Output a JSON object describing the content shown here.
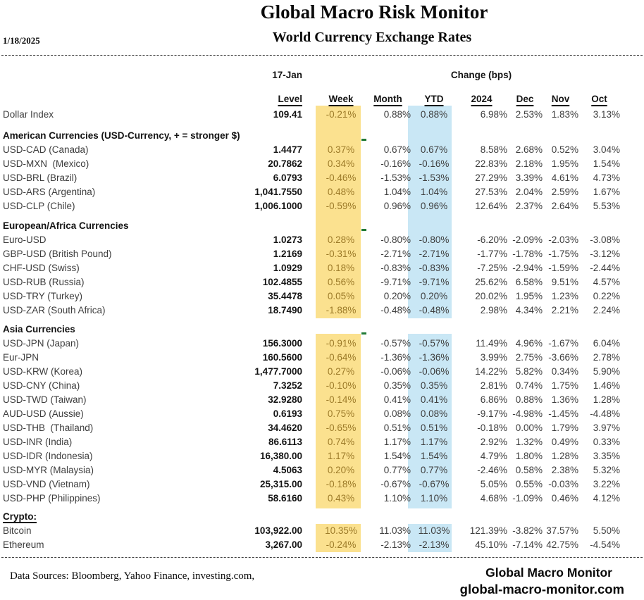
{
  "header": {
    "title": "Global Macro Risk Monitor",
    "subtitle": "World Currency Exchange Rates",
    "date": "1/18/2025"
  },
  "table": {
    "group_headers": {
      "level_group": "17-Jan",
      "change_group": "Change (bps)"
    },
    "columns": [
      "Level",
      "Week",
      "Month",
      "YTD",
      "2024",
      "Dec",
      "Nov",
      "Oct"
    ],
    "sections": [
      {
        "label": null,
        "rows": [
          {
            "label": "Dollar Index",
            "level": "109.41",
            "week": "-0.21%",
            "month": "0.88%",
            "ytd": "0.88%",
            "y2024": "6.98%",
            "dec": "2.53%",
            "nov": "1.83%",
            "oct": "3.13%"
          }
        ]
      },
      {
        "label": "American Currencies (USD-Currency, + = stronger $)",
        "rows": [
          {
            "label": "USD-CAD (Canada)",
            "level": "1.4477",
            "week": "0.37%",
            "month": "0.67%",
            "ytd": "0.67%",
            "y2024": "8.58%",
            "dec": "2.68%",
            "nov": "0.52%",
            "oct": "3.04%"
          },
          {
            "label": "USD-MXN  (Mexico)",
            "level": "20.7862",
            "week": "0.34%",
            "month": "-0.16%",
            "ytd": "-0.16%",
            "y2024": "22.83%",
            "dec": "2.18%",
            "nov": "1.95%",
            "oct": "1.54%"
          },
          {
            "label": "USD-BRL (Brazil)",
            "level": "6.0793",
            "week": "-0.46%",
            "month": "-1.53%",
            "ytd": "-1.53%",
            "y2024": "27.29%",
            "dec": "3.39%",
            "nov": "4.61%",
            "oct": "4.73%"
          },
          {
            "label": "USD-ARS (Argentina)",
            "level": "1,041.7550",
            "week": "0.48%",
            "month": "1.04%",
            "ytd": "1.04%",
            "y2024": "27.53%",
            "dec": "2.04%",
            "nov": "2.59%",
            "oct": "1.67%"
          },
          {
            "label": "USD-CLP (Chile)",
            "level": "1,006.1000",
            "week": "-0.59%",
            "month": "0.96%",
            "ytd": "0.96%",
            "y2024": "12.64%",
            "dec": "2.37%",
            "nov": "2.64%",
            "oct": "5.53%"
          }
        ]
      },
      {
        "label": "European/Africa Currencies",
        "rows": [
          {
            "label": "Euro-USD",
            "level": "1.0273",
            "week": "0.28%",
            "month": "-0.80%",
            "ytd": "-0.80%",
            "y2024": "-6.20%",
            "dec": "-2.09%",
            "nov": "-2.03%",
            "oct": "-3.08%"
          },
          {
            "label": "GBP-USD (British Pound)",
            "level": "1.2169",
            "week": "-0.31%",
            "month": "-2.71%",
            "ytd": "-2.71%",
            "y2024": "-1.77%",
            "dec": "-1.78%",
            "nov": "-1.75%",
            "oct": "-3.12%"
          },
          {
            "label": "CHF-USD (Swiss)",
            "level": "1.0929",
            "week": "0.18%",
            "month": "-0.83%",
            "ytd": "-0.83%",
            "y2024": "-7.25%",
            "dec": "-2.94%",
            "nov": "-1.59%",
            "oct": "-2.44%"
          },
          {
            "label": "USD-RUB (Russia)",
            "level": "102.4855",
            "week": "0.56%",
            "month": "-9.71%",
            "ytd": "-9.71%",
            "y2024": "25.62%",
            "dec": "6.58%",
            "nov": "9.51%",
            "oct": "4.57%"
          },
          {
            "label": "USD-TRY (Turkey)",
            "level": "35.4478",
            "week": "0.05%",
            "month": "0.20%",
            "ytd": "0.20%",
            "y2024": "20.02%",
            "dec": "1.95%",
            "nov": "1.23%",
            "oct": "0.22%"
          },
          {
            "label": "USD-ZAR (South Africa)",
            "level": "18.7490",
            "week": "-1.88%",
            "month": "-0.48%",
            "ytd": "-0.48%",
            "y2024": "2.98%",
            "dec": "4.34%",
            "nov": "2.21%",
            "oct": "2.24%"
          }
        ]
      },
      {
        "label": "Asia Currencies",
        "rows": [
          {
            "label": "USD-JPN (Japan)",
            "level": "156.3000",
            "week": "-0.91%",
            "month": "-0.57%",
            "ytd": "-0.57%",
            "y2024": "11.49%",
            "dec": "4.96%",
            "nov": "-1.67%",
            "oct": "6.04%"
          },
          {
            "label": "Eur-JPN",
            "level": "160.5600",
            "week": "-0.64%",
            "month": "-1.36%",
            "ytd": "-1.36%",
            "y2024": "3.99%",
            "dec": "2.75%",
            "nov": "-3.66%",
            "oct": "2.78%"
          },
          {
            "label": "USD-KRW (Korea)",
            "level": "1,477.7000",
            "week": "0.27%",
            "month": "-0.06%",
            "ytd": "-0.06%",
            "y2024": "14.22%",
            "dec": "5.82%",
            "nov": "0.34%",
            "oct": "5.90%"
          },
          {
            "label": "USD-CNY (China)",
            "level": "7.3252",
            "week": "-0.10%",
            "month": "0.35%",
            "ytd": "0.35%",
            "y2024": "2.81%",
            "dec": "0.74%",
            "nov": "1.75%",
            "oct": "1.46%"
          },
          {
            "label": "USD-TWD (Taiwan)",
            "level": "32.9280",
            "week": "-0.14%",
            "month": "0.41%",
            "ytd": "0.41%",
            "y2024": "6.86%",
            "dec": "0.88%",
            "nov": "1.36%",
            "oct": "1.28%"
          },
          {
            "label": "AUD-USD (Aussie)",
            "level": "0.6193",
            "week": "0.75%",
            "month": "0.08%",
            "ytd": "0.08%",
            "y2024": "-9.17%",
            "dec": "-4.98%",
            "nov": "-1.45%",
            "oct": "-4.48%"
          },
          {
            "label": "USD-THB  (Thailand)",
            "level": "34.4620",
            "week": "-0.65%",
            "month": "0.51%",
            "ytd": "0.51%",
            "y2024": "-0.18%",
            "dec": "0.00%",
            "nov": "1.79%",
            "oct": "3.97%"
          },
          {
            "label": "USD-INR (India)",
            "level": "86.6113",
            "week": "0.74%",
            "month": "1.17%",
            "ytd": "1.17%",
            "y2024": "2.92%",
            "dec": "1.32%",
            "nov": "0.49%",
            "oct": "0.33%"
          },
          {
            "label": "USD-IDR (Indonesia)",
            "level": "16,380.00",
            "week": "1.17%",
            "month": "1.54%",
            "ytd": "1.54%",
            "y2024": "4.79%",
            "dec": "1.80%",
            "nov": "1.28%",
            "oct": "3.35%"
          },
          {
            "label": "USD-MYR (Malaysia)",
            "level": "4.5063",
            "week": "0.20%",
            "month": "0.77%",
            "ytd": "0.77%",
            "y2024": "-2.46%",
            "dec": "0.58%",
            "nov": "2.38%",
            "oct": "5.32%"
          },
          {
            "label": "USD-VND (Vietnam)",
            "level": "25,315.00",
            "week": "-0.18%",
            "month": "-0.67%",
            "ytd": "-0.67%",
            "y2024": "5.05%",
            "dec": "0.55%",
            "nov": "-0.03%",
            "oct": "3.22%"
          },
          {
            "label": "USD-PHP (Philippines)",
            "level": "58.6160",
            "week": "0.43%",
            "month": "1.10%",
            "ytd": "1.10%",
            "y2024": "4.68%",
            "dec": "-1.09%",
            "nov": "0.46%",
            "oct": "4.12%"
          }
        ]
      },
      {
        "label": "Crypto:",
        "underline": true,
        "rows": [
          {
            "label": "Bitcoin",
            "level": "103,922.00",
            "week": "10.35%",
            "month": "11.03%",
            "ytd": "11.03%",
            "y2024": "121.39%",
            "dec": "-3.82%",
            "nov": "37.57%",
            "oct": "5.50%"
          },
          {
            "label": "Ethereum",
            "level": "3,267.00",
            "week": "-0.24%",
            "month": "-2.13%",
            "ytd": "-2.13%",
            "y2024": "45.10%",
            "dec": "-7.14%",
            "nov": "42.75%",
            "oct": "-4.54%"
          }
        ]
      }
    ]
  },
  "footer": {
    "sources": "Data Sources:  Bloomberg,  Yahoo Finance, investing.com,",
    "brand_line1": "Global Macro Monitor",
    "brand_line2": "global-macro-monitor.com"
  },
  "colors": {
    "week_highlight_bg": "#FBE18F",
    "week_text": "#9C7A28",
    "ytd_highlight_bg": "#C9E7F5",
    "section_tick_green": "#217A36"
  }
}
